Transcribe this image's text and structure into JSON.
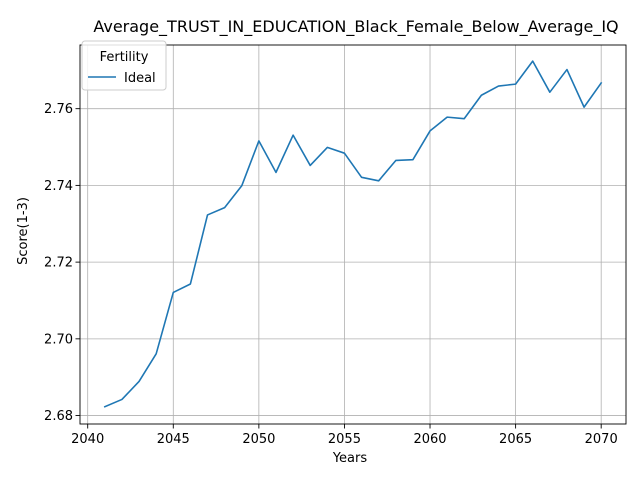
{
  "chart_data": {
    "type": "line",
    "title": "Average_TRUST_IN_EDUCATION_Black_Female_Below_Average_IQ",
    "xlabel": "Years",
    "ylabel": "Score(1-3)",
    "xlim": [
      2039.55,
      2071.45
    ],
    "ylim": [
      2.6778,
      2.7766
    ],
    "xticks": [
      2040,
      2045,
      2050,
      2055,
      2060,
      2065,
      2070
    ],
    "yticks": [
      2.68,
      2.7,
      2.72,
      2.74,
      2.76
    ],
    "xtick_labels": [
      "2040",
      "2045",
      "2050",
      "2055",
      "2060",
      "2065",
      "2070"
    ],
    "ytick_labels": [
      "2.68",
      "2.70",
      "2.72",
      "2.74",
      "2.76"
    ],
    "grid": true,
    "legend": {
      "title": "Fertility",
      "placement": "upper-left"
    },
    "series": [
      {
        "name": "Ideal",
        "color": "#1f77b4",
        "x": [
          2041,
          2042,
          2043,
          2044,
          2045,
          2046,
          2047,
          2048,
          2049,
          2050,
          2051,
          2052,
          2053,
          2054,
          2055,
          2056,
          2057,
          2058,
          2059,
          2060,
          2061,
          2062,
          2063,
          2064,
          2065,
          2066,
          2067,
          2068,
          2069,
          2070
        ],
        "y": [
          2.6823,
          2.6842,
          2.6889,
          2.6961,
          2.7121,
          2.7143,
          2.7323,
          2.7342,
          2.7399,
          2.7516,
          2.7434,
          2.7531,
          2.7452,
          2.7499,
          2.7484,
          2.7421,
          2.7412,
          2.7465,
          2.7467,
          2.7542,
          2.7578,
          2.7574,
          2.7635,
          2.7659,
          2.7664,
          2.7724,
          2.7643,
          2.7702,
          2.7604,
          2.7667
        ]
      }
    ]
  }
}
